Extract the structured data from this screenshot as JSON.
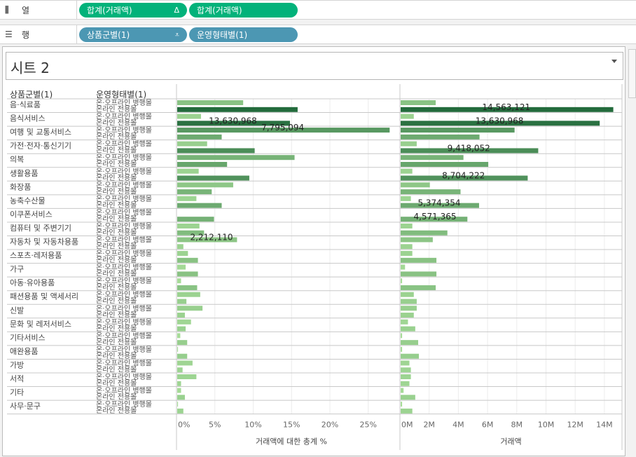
{
  "shelves": {
    "columns": {
      "icon": "columns-icon",
      "label": "열",
      "pills": [
        {
          "label": "합계(거래액)",
          "icon": "delta-icon",
          "icon_glyph": "Δ"
        },
        {
          "label": "합계(거래액)"
        }
      ]
    },
    "rows": {
      "icon": "rows-icon",
      "label": "행",
      "pills": [
        {
          "label": "상품군별(1)",
          "icon": "sort-icon",
          "icon_glyph": "⩡"
        },
        {
          "label": "운영형태별(1)"
        }
      ]
    }
  },
  "sheet": {
    "title": "시트 2",
    "dropdown_icon": "dropdown-icon",
    "headers": {
      "category": "상품군별(1)",
      "type": "운영형태별(1)"
    }
  },
  "chart_data": [
    {
      "type": "bar",
      "orientation": "horizontal",
      "title": "",
      "xlabel": "거래액에 대한 총계 %",
      "xlim": [
        0,
        29
      ],
      "xticks": [
        "0%",
        "5%",
        "10%",
        "15%",
        "20%",
        "25%"
      ],
      "tick_values": [
        0,
        5,
        10,
        15,
        20,
        25
      ],
      "grid": true,
      "categories": [
        "음·식료품",
        "음식서비스",
        "여행 및 교통서비스",
        "가전·전자·통신기기",
        "의복",
        "생활용품",
        "화장품",
        "농축수산물",
        "이쿠폰서비스",
        "컴퓨터 및 주변기기",
        "자동차 및 자동차용품",
        "스포츠·레저용품",
        "가구",
        "아동·유아용품",
        "패션용품 및 액세서리",
        "신발",
        "문화 및 레저서비스",
        "기타서비스",
        "애완용품",
        "가방",
        "서적",
        "기타",
        "사무·문구"
      ],
      "subcategories": [
        "온·오프라인 병행몰",
        "온라인 전용몰"
      ],
      "series": [
        {
          "name": "온·오프라인 병행몰",
          "values": [
            8.6,
            3.1,
            27.7,
            3.9,
            15.3,
            2.8,
            7.3,
            2.5,
            0,
            2.9,
            7.8,
            1.4,
            1.1,
            0.5,
            3.0,
            3.3,
            1.8,
            0.4,
            0.1,
            2.0,
            2.5,
            0.5,
            0.1
          ]
        },
        {
          "name": "온라인 전용몰",
          "values": [
            15.7,
            14.7,
            5.8,
            10.1,
            6.5,
            9.4,
            4.5,
            5.8,
            4.8,
            3.5,
            0.8,
            2.7,
            2.7,
            2.6,
            1.2,
            1.0,
            1.1,
            1.3,
            1.3,
            0.7,
            0.5,
            1.0,
            0.8
          ]
        }
      ],
      "annotations": [
        {
          "category": "음식서비스",
          "series": "온라인 전용몰",
          "text": "13,630,968"
        },
        {
          "category": "여행 및 교통서비스",
          "series": "온·오프라인 병행몰",
          "text": "7,795,094"
        },
        {
          "category": "자동차 및 자동차용품",
          "series": "온·오프라인 병행몰",
          "text": "2,212,110"
        }
      ]
    },
    {
      "type": "bar",
      "orientation": "horizontal",
      "title": "",
      "xlabel": "거래액",
      "xlim": [
        0,
        15
      ],
      "xticks": [
        "0M",
        "2M",
        "4M",
        "6M",
        "8M",
        "10M",
        "12M",
        "14M"
      ],
      "tick_values": [
        0,
        2,
        4,
        6,
        8,
        10,
        12,
        14
      ],
      "unit": "millions",
      "grid": true,
      "series": [
        {
          "name": "온·오프라인 병행몰",
          "values": [
            2.4,
            0.9,
            7.8,
            1.1,
            4.3,
            0.8,
            2.0,
            0.7,
            0,
            0.8,
            2.2,
            0.8,
            0.3,
            0.1,
            0.9,
            1.1,
            0.5,
            0.1,
            0.1,
            0.6,
            0.7,
            0.2,
            0.1
          ]
        },
        {
          "name": "온라인 전용몰",
          "values": [
            14.56,
            13.63,
            5.4,
            9.42,
            6.0,
            8.7,
            4.1,
            5.37,
            4.57,
            3.2,
            0.8,
            2.45,
            2.45,
            2.4,
            1.1,
            0.9,
            1.0,
            1.2,
            1.25,
            0.7,
            0.6,
            1.0,
            0.8
          ]
        }
      ],
      "annotations": [
        {
          "category": "음·식료품",
          "series": "온라인 전용몰",
          "text": "14,563,121"
        },
        {
          "category": "음식서비스",
          "series": "온라인 전용몰",
          "text": "13,630,968"
        },
        {
          "category": "가전·전자·통신기기",
          "series": "온라인 전용몰",
          "text": "9,418,052"
        },
        {
          "category": "생활용품",
          "series": "온라인 전용몰",
          "text": "8,704,222"
        },
        {
          "category": "농축수산물",
          "series": "온라인 전용몰",
          "text": "5,374,354"
        },
        {
          "category": "이쿠폰서비스",
          "series": "온라인 전용몰",
          "text": "4,571,365"
        }
      ]
    }
  ],
  "colors": {
    "pill_green": "#02b27a",
    "pill_blue": "#4c97b3",
    "bar_dark": "#256d3f",
    "bar_light": "#a6dc97"
  }
}
